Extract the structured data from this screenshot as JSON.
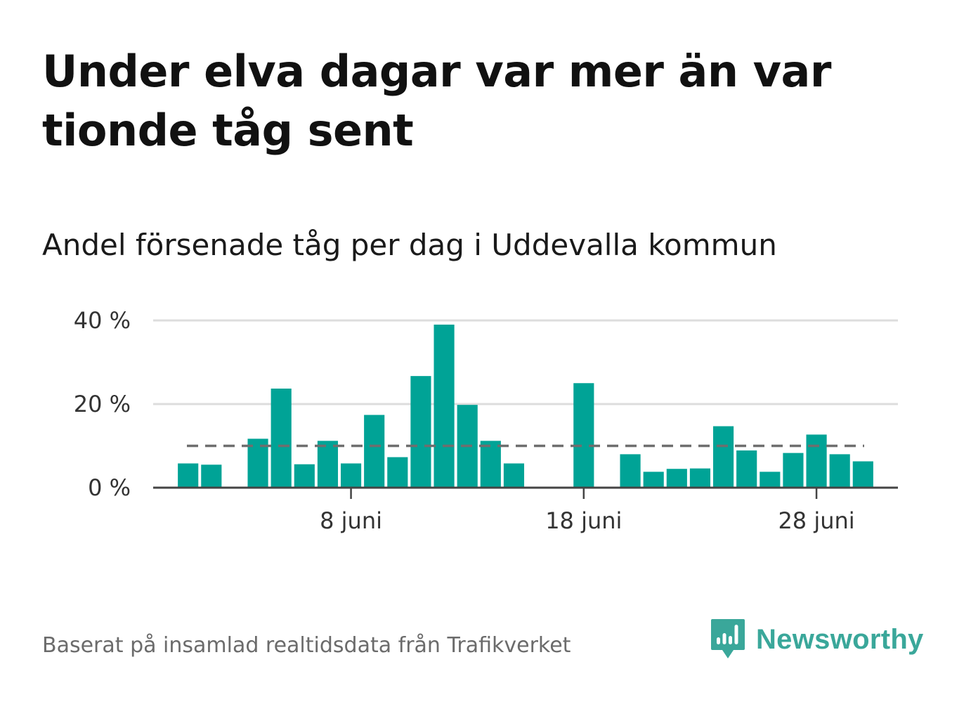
{
  "header": {
    "title": "Under elva dagar var mer än var tionde tåg sent",
    "subtitle": "Andel försenade tåg per dag i Uddevalla kommun"
  },
  "footer": {
    "source": "Baserat på insamlad realtidsdata från Trafikverket",
    "brand": "Newsworthy",
    "brand_icon": "bar-chart-speech-bubble-icon"
  },
  "colors": {
    "bar": "#00a396",
    "reference_line": "#6e6e6e",
    "grid": "#dddddd",
    "axis": "#444444",
    "brand": "#3aa79a"
  },
  "chart_data": {
    "type": "bar",
    "title": "Andel försenade tåg per dag i Uddevalla kommun",
    "xlabel": "",
    "ylabel": "",
    "x_unit": "juni",
    "x_domain": [
      -0.5,
      31.5
    ],
    "ylim": [
      0,
      40
    ],
    "yticks": [
      0,
      20,
      40
    ],
    "ytick_labels": [
      "0 %",
      "20 %",
      "40 %"
    ],
    "xticks": [
      8,
      18,
      28
    ],
    "xtick_labels": [
      "8 juni",
      "18 juni",
      "28 juni"
    ],
    "grid": true,
    "reference_line": 10,
    "days": [
      1,
      2,
      4,
      5,
      6,
      7,
      8,
      9,
      10,
      11,
      12,
      13,
      14,
      15,
      16,
      18,
      20,
      21,
      22,
      23,
      24,
      25,
      26,
      27,
      28,
      29,
      30
    ],
    "values": [
      5.8,
      5.5,
      11.7,
      23.7,
      5.6,
      11.2,
      5.8,
      17.4,
      7.3,
      26.7,
      39.0,
      19.8,
      11.2,
      5.8,
      0,
      25.0,
      8.0,
      3.8,
      4.5,
      4.6,
      14.7,
      8.9,
      3.8,
      8.3,
      12.7,
      8.0,
      6.3
    ]
  }
}
